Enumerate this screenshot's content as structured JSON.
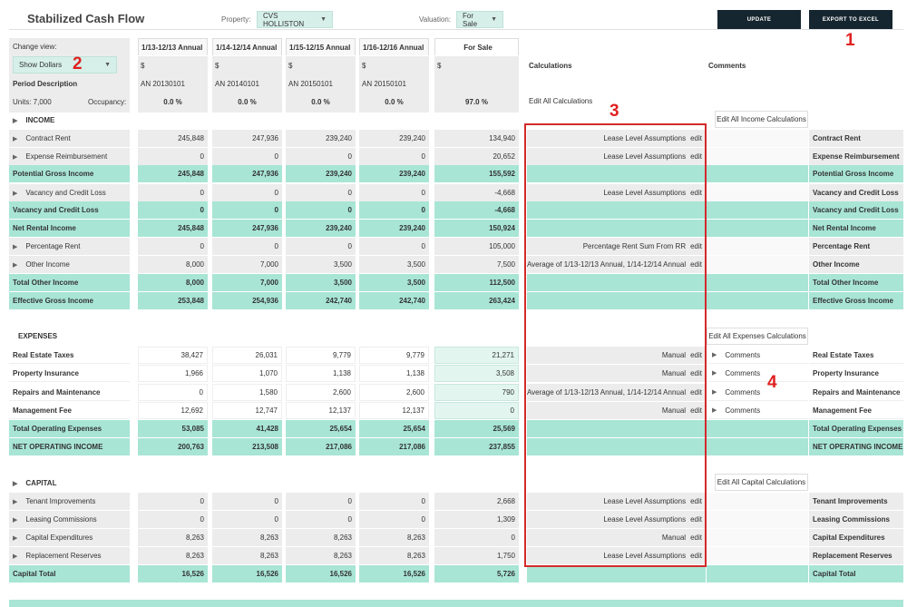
{
  "header": {
    "title": "Stabilized Cash Flow",
    "property_label": "Property:",
    "property_value": "CVS HOLLISTON",
    "valuation_label": "Valuation:",
    "valuation_value": "For Sale",
    "update_btn": "UPDATE",
    "export_btn": "EXPORT TO EXCEL"
  },
  "sidebar": {
    "change_view": "Change view:",
    "view_value": "Show Dollars",
    "period_desc": "Period Description",
    "units": "Units: 7,000",
    "occupancy": "Occupancy:"
  },
  "columns": [
    {
      "header": "1/13-12/13 Annual",
      "unit": "$",
      "period": "AN 20130101",
      "occ": "0.0 %"
    },
    {
      "header": "1/14-12/14 Annual",
      "unit": "$",
      "period": "AN 20140101",
      "occ": "0.0 %"
    },
    {
      "header": "1/15-12/15 Annual",
      "unit": "$",
      "period": "AN 20150101",
      "occ": "0.0 %"
    },
    {
      "header": "1/16-12/16 Annual",
      "unit": "$",
      "period": "AN 20150101",
      "occ": "0.0 %"
    },
    {
      "header": "For Sale",
      "unit": "$",
      "period": "",
      "occ": "97.0 %"
    }
  ],
  "headers": {
    "calculations": "Calculations",
    "comments": "Comments",
    "edit_all": "Edit All Calculations",
    "edit_income": "Edit All Income Calculations",
    "edit_expenses": "Edit All Expenses Calculations",
    "edit_capital": "Edit All Capital Calculations"
  },
  "sections": {
    "income": "INCOME",
    "expenses": "EXPENSES",
    "capital": "CAPITAL"
  },
  "edit_label": "edit",
  "rows": [
    {
      "label": "Contract Rent",
      "vals": [
        "245,848",
        "247,936",
        "239,240",
        "239,240",
        "134,940"
      ],
      "calc": "Lease Level Assumptions",
      "right": "Contract Rent"
    },
    {
      "label": "Expense Reimbursement",
      "vals": [
        "0",
        "0",
        "0",
        "0",
        "20,652"
      ],
      "calc": "Lease Level Assumptions",
      "right": "Expense Reimbursement"
    },
    {
      "label": "Potential Gross Income",
      "vals": [
        "245,848",
        "247,936",
        "239,240",
        "239,240",
        "155,592"
      ],
      "calc": "",
      "right": "Potential Gross Income"
    },
    {
      "label": "Vacancy and Credit Loss",
      "vals": [
        "0",
        "0",
        "0",
        "0",
        "-4,668"
      ],
      "calc": "Lease Level Assumptions",
      "right": "Vacancy and Credit Loss"
    },
    {
      "label": "Vacancy and Credit Loss",
      "vals": [
        "0",
        "0",
        "0",
        "0",
        "-4,668"
      ],
      "calc": "",
      "right": "Vacancy and Credit Loss"
    },
    {
      "label": "Net Rental Income",
      "vals": [
        "245,848",
        "247,936",
        "239,240",
        "239,240",
        "150,924"
      ],
      "calc": "",
      "right": "Net Rental Income"
    },
    {
      "label": "Percentage Rent",
      "vals": [
        "0",
        "0",
        "0",
        "0",
        "105,000"
      ],
      "calc": "Percentage Rent Sum From RR",
      "right": "Percentage Rent"
    },
    {
      "label": "Other Income",
      "vals": [
        "8,000",
        "7,000",
        "3,500",
        "3,500",
        "7,500"
      ],
      "calc": "Average of 1/13-12/13 Annual, 1/14-12/14 Annual",
      "right": "Other Income"
    },
    {
      "label": "Total Other Income",
      "vals": [
        "8,000",
        "7,000",
        "3,500",
        "3,500",
        "112,500"
      ],
      "calc": "",
      "right": "Total Other Income"
    },
    {
      "label": "Effective Gross Income",
      "vals": [
        "253,848",
        "254,936",
        "242,740",
        "242,740",
        "263,424"
      ],
      "calc": "",
      "right": "Effective Gross Income"
    },
    {
      "label": "Real Estate Taxes",
      "vals": [
        "38,427",
        "26,031",
        "9,779",
        "9,779",
        "21,271"
      ],
      "calc": "Manual",
      "comment": "Comments",
      "right": "Real Estate Taxes"
    },
    {
      "label": "Property Insurance",
      "vals": [
        "1,966",
        "1,070",
        "1,138",
        "1,138",
        "3,508"
      ],
      "calc": "Manual",
      "comment": "Comments",
      "right": "Property Insurance"
    },
    {
      "label": "Repairs and Maintenance",
      "vals": [
        "0",
        "1,580",
        "2,600",
        "2,600",
        "790"
      ],
      "calc": "Average of 1/13-12/13 Annual, 1/14-12/14 Annual",
      "comment": "Comments",
      "right": "Repairs and Maintenance"
    },
    {
      "label": "Management Fee",
      "vals": [
        "12,692",
        "12,747",
        "12,137",
        "12,137",
        "0"
      ],
      "calc": "Manual",
      "comment": "Comments",
      "right": "Management Fee"
    },
    {
      "label": "Total Operating Expenses",
      "vals": [
        "53,085",
        "41,428",
        "25,654",
        "25,654",
        "25,569"
      ],
      "calc": "",
      "right": "Total Operating Expenses"
    },
    {
      "label": "NET OPERATING INCOME",
      "vals": [
        "200,763",
        "213,508",
        "217,086",
        "217,086",
        "237,855"
      ],
      "calc": "",
      "right": "NET OPERATING INCOME"
    },
    {
      "label": "Tenant Improvements",
      "vals": [
        "0",
        "0",
        "0",
        "0",
        "2,668"
      ],
      "calc": "Lease Level Assumptions",
      "right": "Tenant Improvements"
    },
    {
      "label": "Leasing Commissions",
      "vals": [
        "0",
        "0",
        "0",
        "0",
        "1,309"
      ],
      "calc": "Lease Level Assumptions",
      "right": "Leasing Commissions"
    },
    {
      "label": "Capital Expenditures",
      "vals": [
        "8,263",
        "8,263",
        "8,263",
        "8,263",
        "0"
      ],
      "calc": "Manual",
      "right": "Capital Expenditures"
    },
    {
      "label": "Replacement Reserves",
      "vals": [
        "8,263",
        "8,263",
        "8,263",
        "8,263",
        "1,750"
      ],
      "calc": "Lease Level Assumptions",
      "right": "Replacement Reserves"
    },
    {
      "label": "Capital Total",
      "vals": [
        "16,526",
        "16,526",
        "16,526",
        "16,526",
        "5,726"
      ],
      "calc": "",
      "right": "Capital Total"
    }
  ],
  "annotations": [
    "1",
    "2",
    "3",
    "4"
  ]
}
